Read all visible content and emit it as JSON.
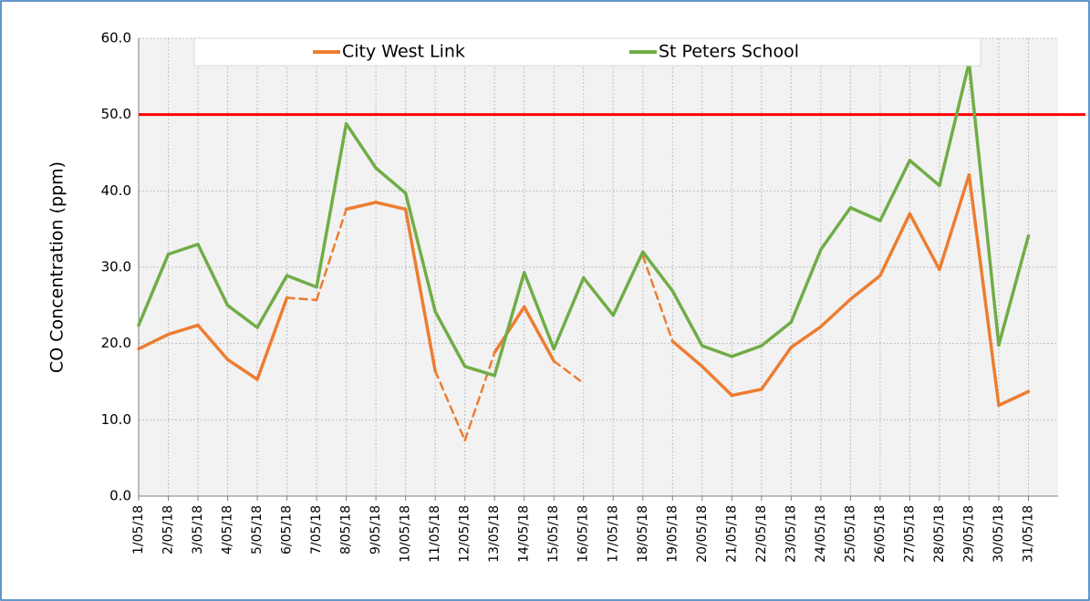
{
  "chart_data": {
    "type": "line",
    "y_label": "CO Concentration (ppm)",
    "categories": [
      "1/05/18",
      "2/05/18",
      "3/05/18",
      "4/05/18",
      "5/05/18",
      "6/05/18",
      "7/05/18",
      "8/05/18",
      "9/05/18",
      "10/05/18",
      "11/05/18",
      "12/05/18",
      "13/05/18",
      "14/05/18",
      "15/05/18",
      "16/05/18",
      "17/05/18",
      "18/05/18",
      "19/05/18",
      "20/05/18",
      "21/05/18",
      "22/05/18",
      "23/05/18",
      "24/05/18",
      "25/05/18",
      "26/05/18",
      "27/05/18",
      "28/05/18",
      "29/05/18",
      "30/05/18",
      "31/05/18"
    ],
    "series": [
      {
        "name": "City West Link",
        "color": "#ed7d31",
        "dashed_segments": [
          5,
          6,
          10,
          11,
          14,
          17
        ],
        "values": [
          19.3,
          21.2,
          22.4,
          17.9,
          15.3,
          26.0,
          25.7,
          37.6,
          38.5,
          37.6,
          16.4,
          7.3,
          18.8,
          24.8,
          17.7,
          14.8,
          null,
          31.5,
          20.3,
          17.0,
          13.2,
          14.0,
          19.5,
          22.2,
          25.8,
          28.9,
          37.0,
          29.7,
          42.1,
          11.9,
          13.7
        ]
      },
      {
        "name": "St Peters School",
        "color": "#70ad47",
        "values": [
          22.4,
          31.7,
          33.0,
          25.0,
          22.1,
          28.9,
          27.4,
          48.8,
          43.0,
          39.7,
          24.2,
          17.0,
          15.8,
          29.3,
          19.3,
          28.6,
          23.7,
          32.0,
          26.9,
          19.7,
          18.3,
          19.7,
          22.8,
          32.3,
          37.8,
          36.1,
          44.0,
          40.7,
          56.8,
          19.8,
          34.1
        ]
      }
    ],
    "threshold": {
      "value": 50,
      "color": "#ff0000"
    },
    "ylim": [
      0,
      60
    ],
    "yticks": [
      {
        "value": 0,
        "label": "0.0"
      },
      {
        "value": 10,
        "label": "10.0"
      },
      {
        "value": 20,
        "label": "20.0"
      },
      {
        "value": 30,
        "label": "30.0"
      },
      {
        "value": 40,
        "label": "40.0"
      },
      {
        "value": 50,
        "label": "50.0"
      },
      {
        "value": 60,
        "label": "60.0"
      }
    ],
    "grid": true,
    "legend": "top"
  }
}
